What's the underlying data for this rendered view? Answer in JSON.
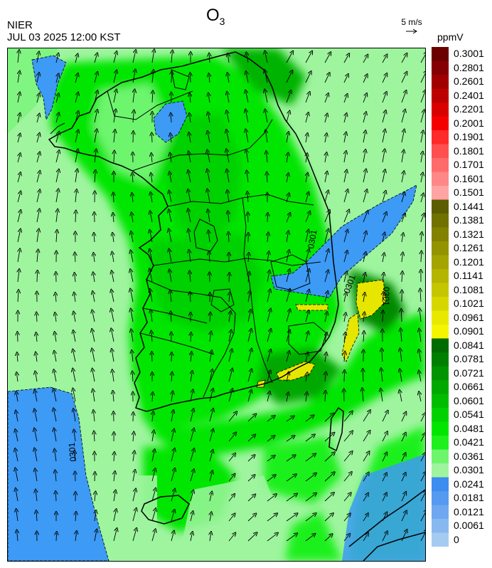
{
  "header": {
    "agency": "NIER",
    "timestamp": "JUL 03 2025 12:00 KST",
    "title_main": "O",
    "title_sub": "3",
    "wind_reference": "5 m/s",
    "unit": "ppmV"
  },
  "map": {
    "contour_labels": [
      "0301",
      "0301",
      "0301",
      "0301"
    ],
    "palette": {
      "sea_light_green": "#9ef59e",
      "green_mid": "#00e600",
      "green_dark": "#00b300",
      "green_deep": "#008a00",
      "blue": "#3d9af5",
      "yellow": "#e6e600",
      "olive": "#b3b300",
      "coast": "#000000"
    }
  },
  "legend": {
    "labels": [
      "0.3001",
      "0.2801",
      "0.2601",
      "0.2401",
      "0.2201",
      "0.2001",
      "0.1901",
      "0.1801",
      "0.1701",
      "0.1601",
      "0.1501",
      "0.1441",
      "0.1381",
      "0.1321",
      "0.1261",
      "0.1201",
      "0.1141",
      "0.1081",
      "0.1021",
      "0.0961",
      "0.0901",
      "0.0841",
      "0.0781",
      "0.0721",
      "0.0661",
      "0.0601",
      "0.0541",
      "0.0481",
      "0.0421",
      "0.0361",
      "0.0301",
      "0.0241",
      "0.0181",
      "0.0121",
      "0.0061",
      "0"
    ],
    "colors": [
      "#6b0000",
      "#850000",
      "#a10000",
      "#bd0000",
      "#d90000",
      "#f50000",
      "#ff2a2a",
      "#ff4f4f",
      "#ff6b6b",
      "#ff8787",
      "#ffa3a3",
      "#5c5c00",
      "#717100",
      "#828200",
      "#939300",
      "#a4a400",
      "#b5b500",
      "#c6c600",
      "#d7d700",
      "#e8e800",
      "#f5f500",
      "#006b00",
      "#007f00",
      "#009400",
      "#00a800",
      "#00bd00",
      "#00d100",
      "#00e600",
      "#1ef01e",
      "#6ef56e",
      "#9ef59e",
      "#3d8cf0",
      "#5599f0",
      "#6fa8f0",
      "#88b8f0",
      "#a6cbf0"
    ]
  }
}
